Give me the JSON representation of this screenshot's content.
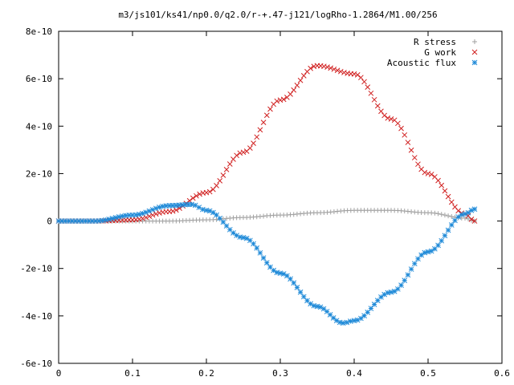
{
  "chart_data": {
    "type": "scatter",
    "title": "m3/js101/ks41/np0.0/q2.0/r-+.47-j121/logRho-1.2864/M1.00/256",
    "xlabel": "",
    "ylabel": "",
    "xlim": [
      0,
      0.6
    ],
    "ylim": [
      -6e-10,
      8e-10
    ],
    "x_ticks": [
      {
        "value": 0,
        "label": "0"
      },
      {
        "value": 0.1,
        "label": "0.1"
      },
      {
        "value": 0.2,
        "label": "0.2"
      },
      {
        "value": 0.3,
        "label": "0.3"
      },
      {
        "value": 0.4,
        "label": "0.4"
      },
      {
        "value": 0.5,
        "label": "0.5"
      },
      {
        "value": 0.6,
        "label": "0.6"
      }
    ],
    "y_ticks": [
      {
        "value": -6e-10,
        "label": "-6e-10"
      },
      {
        "value": -4e-10,
        "label": "-4e-10"
      },
      {
        "value": -2e-10,
        "label": "-2e-10"
      },
      {
        "value": 0,
        "label": "0"
      },
      {
        "value": 2e-10,
        "label": "2e-10"
      },
      {
        "value": 4e-10,
        "label": "4e-10"
      },
      {
        "value": 6e-10,
        "label": "6e-10"
      },
      {
        "value": 8e-10,
        "label": "8e-10"
      }
    ],
    "grid": false,
    "legend_position": "top-right",
    "series": [
      {
        "name": "R stress",
        "marker": "plus",
        "color": "#a0a0a0",
        "points": [
          [
            0,
            0
          ],
          [
            0.05,
            0
          ],
          [
            0.1,
            0
          ],
          [
            0.15,
            0
          ],
          [
            0.2,
            5e-12
          ],
          [
            0.25,
            1.5e-11
          ],
          [
            0.3,
            2.5e-11
          ],
          [
            0.35,
            3.5e-11
          ],
          [
            0.4,
            4.5e-11
          ],
          [
            0.45,
            4.5e-11
          ],
          [
            0.5,
            3.5e-11
          ],
          [
            0.55,
            1.2e-11
          ],
          [
            0.563,
            0
          ]
        ]
      },
      {
        "name": "G work",
        "marker": "cross",
        "color": "#d02020",
        "points": [
          [
            0,
            0
          ],
          [
            0.05,
            0
          ],
          [
            0.1,
            5e-12
          ],
          [
            0.15,
            4e-11
          ],
          [
            0.2,
            1.2e-10
          ],
          [
            0.25,
            2.9e-10
          ],
          [
            0.3,
            5.1e-10
          ],
          [
            0.35,
            6.55e-10
          ],
          [
            0.4,
            6.2e-10
          ],
          [
            0.45,
            4.3e-10
          ],
          [
            0.5,
            2e-10
          ],
          [
            0.55,
            3e-11
          ],
          [
            0.563,
            0
          ]
        ]
      },
      {
        "name": "Acoustic flux",
        "marker": "star",
        "color": "#1f8ad8",
        "points": [
          [
            0,
            0
          ],
          [
            0.05,
            0
          ],
          [
            0.1,
            2.5e-11
          ],
          [
            0.15,
            6.5e-11
          ],
          [
            0.18,
            7e-11
          ],
          [
            0.2,
            4.5e-11
          ],
          [
            0.25,
            -7e-11
          ],
          [
            0.3,
            -2.2e-10
          ],
          [
            0.35,
            -3.6e-10
          ],
          [
            0.385,
            -4.3e-10
          ],
          [
            0.4,
            -4.2e-10
          ],
          [
            0.45,
            -3e-10
          ],
          [
            0.5,
            -1.3e-10
          ],
          [
            0.55,
            3e-11
          ],
          [
            0.563,
            5e-11
          ]
        ]
      }
    ]
  }
}
